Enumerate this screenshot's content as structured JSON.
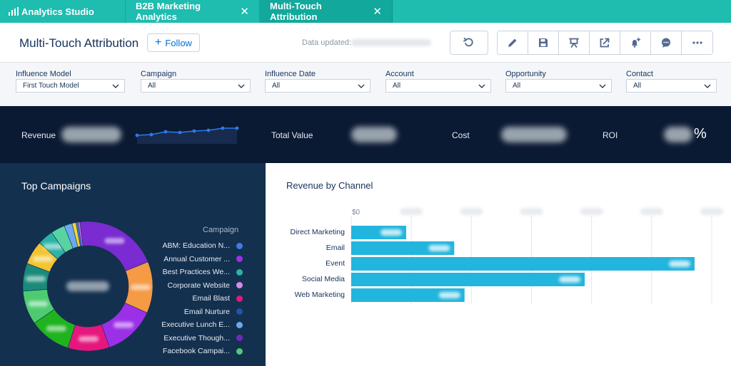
{
  "tabs": {
    "app_name": "Analytics Studio",
    "items": [
      {
        "label": "B2B Marketing Analytics",
        "active": false
      },
      {
        "label": "Multi-Touch Attribution",
        "active": true
      }
    ]
  },
  "header": {
    "title": "Multi-Touch Attribution",
    "follow_label": "Follow",
    "data_updated_label": "Data updated:"
  },
  "toolbar_icons": [
    "undo-icon",
    "pencil-icon",
    "save-icon",
    "present-icon",
    "share-icon",
    "notification-add-icon",
    "comment-icon",
    "more-icon"
  ],
  "filters": [
    {
      "label": "Influence Model",
      "value": "First Touch Model"
    },
    {
      "label": "Campaign",
      "value": "All"
    },
    {
      "label": "Influence Date",
      "value": "All"
    },
    {
      "label": "Account",
      "value": "All"
    },
    {
      "label": "Opportunity",
      "value": "All"
    },
    {
      "label": "Contact",
      "value": "All"
    }
  ],
  "kpis": {
    "revenue_label": "Revenue",
    "total_value_label": "Total Value",
    "cost_label": "Cost",
    "roi_label": "ROI",
    "roi_unit": "%"
  },
  "colors": {
    "tabbar": "#1fbcb0",
    "kpi_band": "#0b1a33",
    "campaign_panel": "#14304f",
    "bar": "#22b5dd"
  },
  "chart_data": [
    {
      "type": "line",
      "x": [
        1,
        2,
        3,
        4,
        5,
        6,
        7,
        8
      ],
      "y": [
        10,
        11,
        15,
        14,
        16,
        17,
        20,
        20
      ]
    },
    {
      "type": "pie",
      "title": "Top Campaigns",
      "legend_title": "Campaign",
      "legend_position": "right",
      "labels": [
        "ABM: Education N...",
        "Annual Customer ...",
        "Best Practices We...",
        "Corporate Website",
        "Email Blast",
        "Email Nurture",
        "Executive Lunch E...",
        "Executive Though...",
        "Facebook Campai..."
      ],
      "legend_colors": [
        "#3b7de0",
        "#9b30e8",
        "#2ab3a6",
        "#d28be6",
        "#e5177e",
        "#2054a8",
        "#6ea8ee",
        "#7227b8",
        "#4ecb71"
      ],
      "slices": [
        {
          "value": 21,
          "color": "#7a2bd1"
        },
        {
          "value": 13,
          "color": "#f59a45"
        },
        {
          "value": 13,
          "color": "#9b30e8"
        },
        {
          "value": 10.5,
          "color": "#e5177e"
        },
        {
          "value": 10.5,
          "color": "#1fb320"
        },
        {
          "value": 8.5,
          "color": "#4ecb71"
        },
        {
          "value": 7,
          "color": "#1a8a7a"
        },
        {
          "value": 6,
          "color": "#f2c530"
        },
        {
          "value": 4,
          "color": "#2ab3a6"
        },
        {
          "value": 3.5,
          "color": "#5ad3a2"
        },
        {
          "value": 2,
          "color": "#6ea8ee"
        },
        {
          "value": 1,
          "color": "#f2d52e"
        },
        {
          "value": 0.5,
          "color": "#3b7de0"
        },
        {
          "value": 0.5,
          "color": "#c86bf0"
        }
      ]
    },
    {
      "type": "bar",
      "orientation": "horizontal",
      "title": "Revenue by Channel",
      "categories": [
        "Direct Marketing",
        "Email",
        "Event",
        "Social Media",
        "Web Marketing"
      ],
      "values": [
        16,
        30,
        100,
        68,
        33
      ],
      "first_tick": "$0",
      "grid": true
    }
  ]
}
